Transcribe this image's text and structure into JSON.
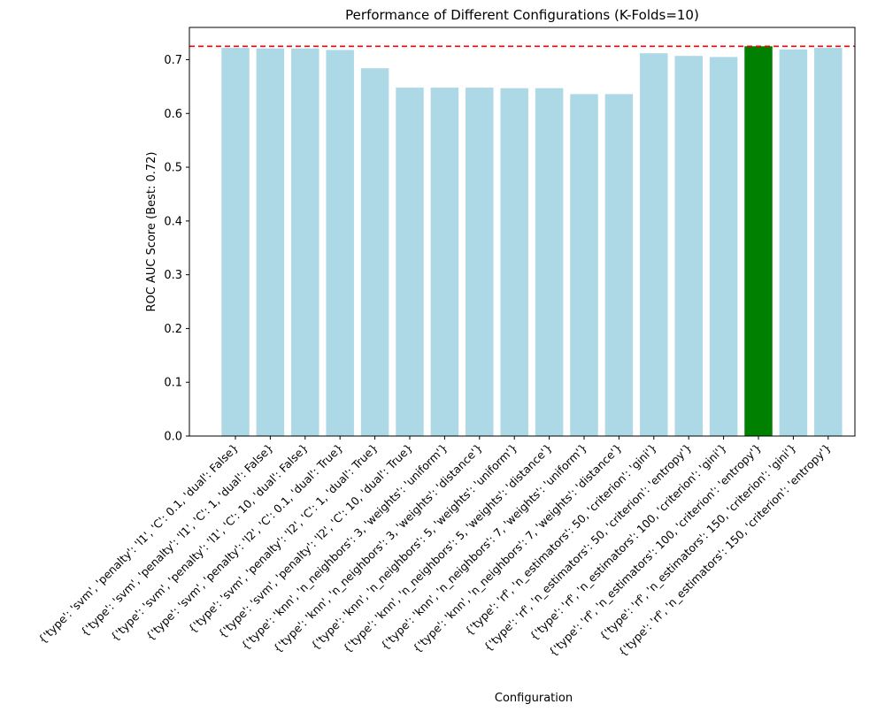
{
  "chart_data": {
    "type": "bar",
    "title": "Performance of Different Configurations (K-Folds=10)",
    "xlabel": "Configuration",
    "ylabel": "ROC AUC Score (Best: 0.72)",
    "ylim": [
      0,
      0.76
    ],
    "yticks": [
      0.0,
      0.1,
      0.2,
      0.3,
      0.4,
      0.5,
      0.6,
      0.7
    ],
    "ytick_labels": [
      "0.0",
      "0.1",
      "0.2",
      "0.3",
      "0.4",
      "0.5",
      "0.6",
      "0.7"
    ],
    "grid": false,
    "legend": "none",
    "categories": [
      "{'type': 'svm', 'penalty': 'l1', 'C': 0.1, 'dual': False}",
      "{'type': 'svm', 'penalty': 'l1', 'C': 1, 'dual': False}",
      "{'type': 'svm', 'penalty': 'l1', 'C': 10, 'dual': False}",
      "{'type': 'svm', 'penalty': 'l2', 'C': 0.1, 'dual': True}",
      "{'type': 'svm', 'penalty': 'l2', 'C': 1, 'dual': True}",
      "{'type': 'svm', 'penalty': 'l2', 'C': 10, 'dual': True}",
      "{'type': 'knn', 'n_neighbors': 3, 'weights': 'uniform'}",
      "{'type': 'knn', 'n_neighbors': 3, 'weights': 'distance'}",
      "{'type': 'knn', 'n_neighbors': 5, 'weights': 'uniform'}",
      "{'type': 'knn', 'n_neighbors': 5, 'weights': 'distance'}",
      "{'type': 'knn', 'n_neighbors': 7, 'weights': 'uniform'}",
      "{'type': 'knn', 'n_neighbors': 7, 'weights': 'distance'}",
      "{'type': 'rf', 'n_estimators': 50, 'criterion': 'gini'}",
      "{'type': 'rf', 'n_estimators': 50, 'criterion': 'entropy'}",
      "{'type': 'rf', 'n_estimators': 100, 'criterion': 'gini'}",
      "{'type': 'rf', 'n_estimators': 100, 'criterion': 'entropy'}",
      "{'type': 'rf', 'n_estimators': 150, 'criterion': 'gini'}",
      "{'type': 'rf', 'n_estimators': 150, 'criterion': 'entropy'}"
    ],
    "values": [
      0.722,
      0.721,
      0.721,
      0.718,
      0.684,
      0.648,
      0.648,
      0.648,
      0.647,
      0.647,
      0.636,
      0.636,
      0.712,
      0.707,
      0.705,
      0.725,
      0.719,
      0.722
    ],
    "best_index": 15,
    "reference_line": {
      "value": 0.725,
      "style": "dashed",
      "color": "#ff0000"
    },
    "colors": {
      "bar": "#add8e6",
      "best_bar": "#008000",
      "axis": "#000000"
    }
  }
}
